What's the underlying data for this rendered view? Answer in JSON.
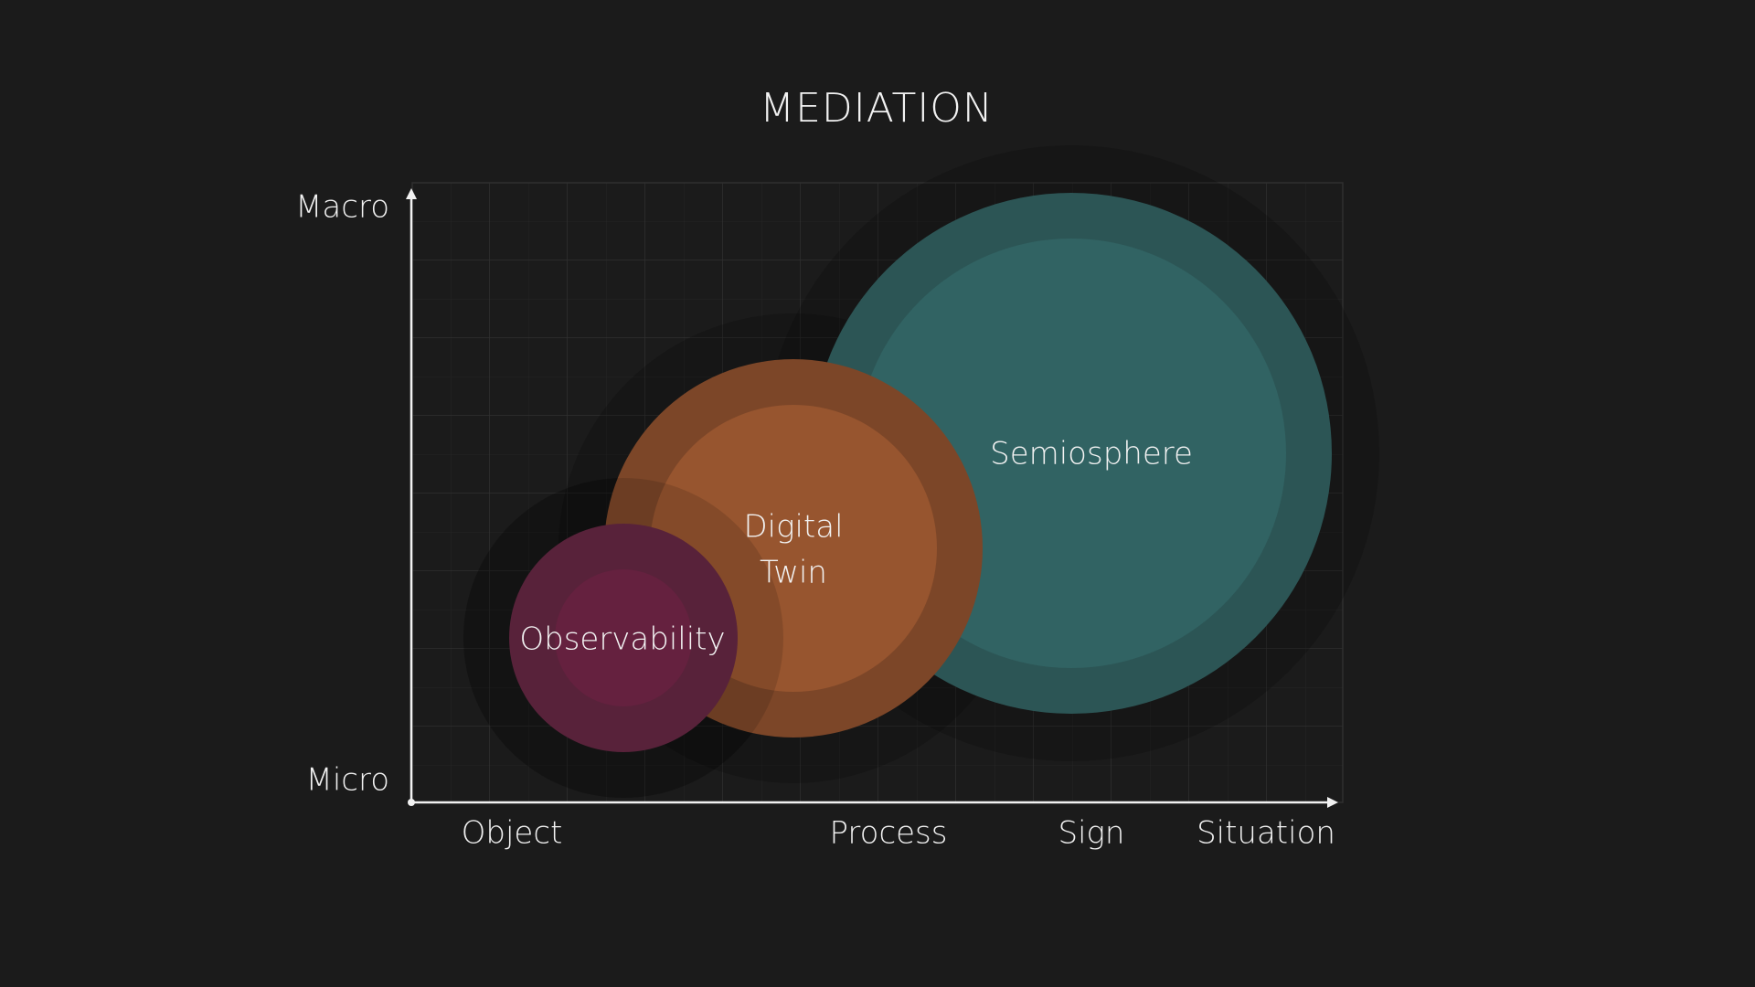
{
  "title": "MEDIATION",
  "y_axis": {
    "top": "Macro",
    "bottom": "Micro"
  },
  "x_axis": {
    "labels": [
      "Object",
      "Process",
      "Sign",
      "Situation"
    ]
  },
  "bubbles": [
    {
      "lines": [
        "Semiosphere"
      ]
    },
    {
      "lines": [
        "Digital",
        "Twin"
      ]
    },
    {
      "lines": [
        "Observability"
      ]
    }
  ]
}
